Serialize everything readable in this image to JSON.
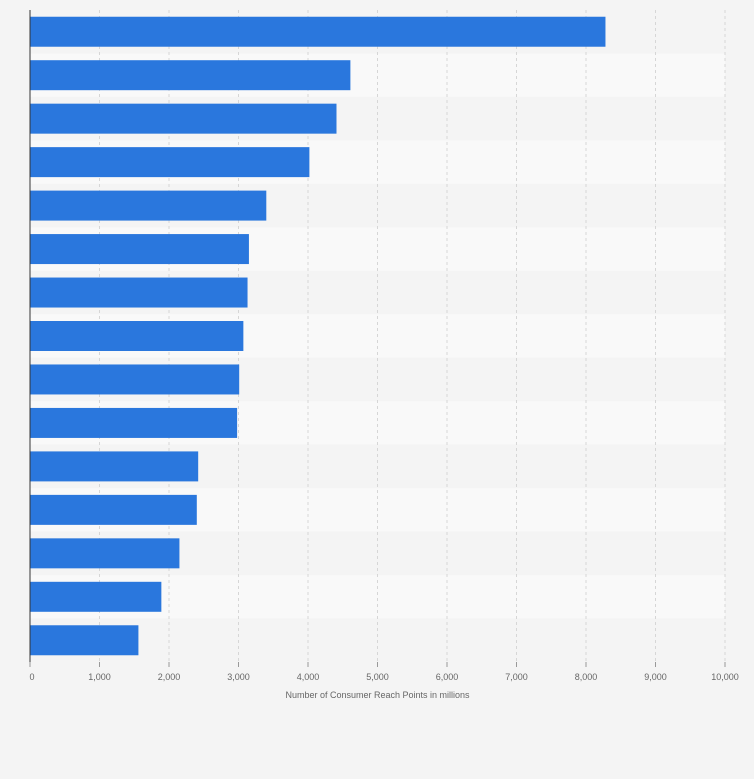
{
  "chart_data": {
    "type": "bar",
    "orientation": "horizontal",
    "categories": [
      "",
      "",
      "",
      "",
      "",
      "",
      "",
      "",
      "",
      "",
      "",
      "",
      "",
      "",
      ""
    ],
    "values": [
      8280,
      4610,
      4410,
      4020,
      3400,
      3150,
      3130,
      3070,
      3010,
      2980,
      2420,
      2400,
      2150,
      1890,
      1560
    ],
    "xlabel": "Number of Consumer Reach Points in millions",
    "xlim": [
      0,
      10000
    ],
    "x_ticks": [
      0,
      1000,
      2000,
      3000,
      4000,
      5000,
      6000,
      7000,
      8000,
      9000,
      10000
    ],
    "x_tick_labels": [
      "0",
      "1,000",
      "2,000",
      "3,000",
      "4,000",
      "5,000",
      "6,000",
      "7,000",
      "8,000",
      "9,000",
      "10,000"
    ],
    "grid": "vertical dashed",
    "bar_color": "#2a77dd",
    "legend": "none"
  }
}
